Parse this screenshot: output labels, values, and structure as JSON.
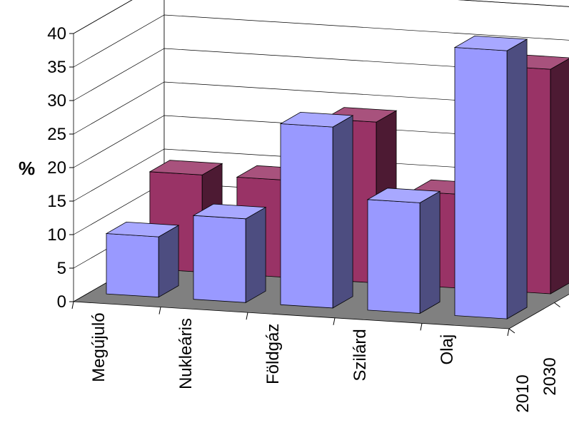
{
  "chart_data": {
    "type": "bar",
    "title": "",
    "xlabel": "",
    "ylabel": "%",
    "ylim": [
      0,
      40
    ],
    "yticks": [
      "0",
      "5",
      "10",
      "15",
      "20",
      "25",
      "30",
      "35",
      "40"
    ],
    "categories": [
      "Megújuló",
      "Nukleáris",
      "Földgáz",
      "Szilárd",
      "Olaj"
    ],
    "series": [
      {
        "name": "2010",
        "values": [
          9,
          12.5,
          27,
          16.5,
          40
        ],
        "color": "#9999ff"
      },
      {
        "name": "2030",
        "values": [
          14.5,
          14.5,
          24,
          14,
          33.5
        ],
        "color": "#993366"
      }
    ],
    "grid": true,
    "floor_color": "#808080",
    "legend": "depth-axis"
  }
}
